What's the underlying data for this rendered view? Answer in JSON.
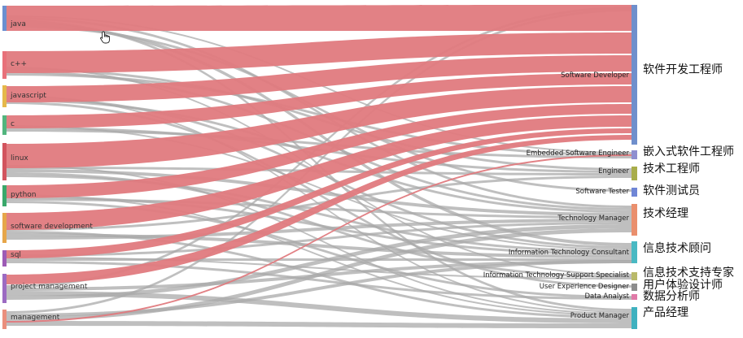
{
  "diagram": {
    "type": "sankey",
    "sources": [
      {
        "id": "java",
        "label": "java",
        "color": "#6b8fd0"
      },
      {
        "id": "cpp",
        "label": "c++",
        "color": "#e8717a"
      },
      {
        "id": "javascript",
        "label": "javascript",
        "color": "#e5b84a"
      },
      {
        "id": "c",
        "label": "c",
        "color": "#52b57e"
      },
      {
        "id": "linux",
        "label": "linux",
        "color": "#d2545e"
      },
      {
        "id": "python",
        "label": "python",
        "color": "#3aa86b"
      },
      {
        "id": "software_development",
        "label": "software development",
        "color": "#e6a64a"
      },
      {
        "id": "sql",
        "label": "sql",
        "color": "#9d5bb5"
      },
      {
        "id": "project_management",
        "label": "project management",
        "color": "#9c6bc2"
      },
      {
        "id": "management",
        "label": "management",
        "color": "#ea8f7d"
      }
    ],
    "targets": [
      {
        "id": "software_developer",
        "label": "Software Developer",
        "zh": "软件开发工程师",
        "color": "#6f8fcc"
      },
      {
        "id": "embedded",
        "label": "Embedded Software Engineer",
        "zh": "嵌入式软件工程师",
        "color": "#8f8fd0"
      },
      {
        "id": "engineer",
        "label": "Engineer",
        "zh": "技术工程师",
        "color": "#a8ad4a"
      },
      {
        "id": "tester",
        "label": "Software Tester",
        "zh": "软件测试员",
        "color": "#6f86d6"
      },
      {
        "id": "tech_manager",
        "label": "Technology Manager",
        "zh": "技术经理",
        "color": "#ea8f6d"
      },
      {
        "id": "it_consultant",
        "label": "Information Technology Consultant",
        "zh": "信息技术顾问",
        "color": "#49b9c3"
      },
      {
        "id": "it_support",
        "label": "Information Technology Support Specialist",
        "zh": "信息技术支持专家",
        "color": "#b9b96a"
      },
      {
        "id": "ux_designer",
        "label": "User Experience Designer",
        "zh": "用户体验设计师",
        "color": "#8d8d8d"
      },
      {
        "id": "data_analyst",
        "label": "Data Analyst",
        "zh": "数据分析师",
        "color": "#e07aa8"
      },
      {
        "id": "product_manager",
        "label": "Product Manager",
        "zh": "产品经理",
        "color": "#3fb1bf"
      }
    ],
    "highlight_color": "#e07a7e",
    "link_color": "#a9a9a9"
  }
}
